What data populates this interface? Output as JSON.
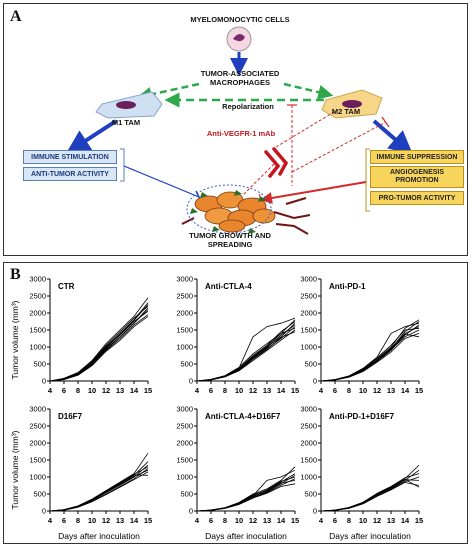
{
  "panel_a": {
    "label": "A",
    "myelo": "MYELOMONOCYTIC CELLS",
    "tam": "TUMOR-ASSOCIATED\nMACROPHAGES",
    "m1": "M1 TAM",
    "m2": "M2 TAM",
    "repol": "Repolarization",
    "antibody": "Anti-VEGFR-1 mAb",
    "m1_effects": [
      "IMMUNE STIMULATION",
      "ANTI-TUMOR ACTIVITY"
    ],
    "m2_effects": [
      "IMMUNE SUPPRESSION",
      "ANGIOGENESIS\nPROMOTION",
      "PRO-TUMOR ACTIVITY"
    ],
    "tumor": "TUMOR GROWTH AND\nSPREADING",
    "colors": {
      "blue_arrow": "#1f3fbf",
      "green_arrow": "#2ea84a",
      "red_arrow": "#d42a2a",
      "tumor": "#e8852d",
      "cell": "#7a2a6a"
    }
  },
  "panel_b": {
    "label": "B",
    "ylabel": "Tumor volume (mm³)",
    "xlabel": "Days after inoculation"
  },
  "chart_data": [
    {
      "type": "line",
      "title": "CTR",
      "x": [
        4,
        6,
        8,
        10,
        12,
        13,
        14,
        15
      ],
      "ylim": [
        0,
        3000
      ],
      "yticks": [
        0,
        500,
        1000,
        1500,
        2000,
        2500,
        3000
      ],
      "xticks": [
        4,
        6,
        8,
        10,
        12,
        13,
        14,
        15
      ],
      "series": [
        {
          "values": [
            0,
            80,
            250,
            600,
            1100,
            1500,
            1900,
            2450
          ]
        },
        {
          "values": [
            0,
            60,
            220,
            550,
            1000,
            1400,
            1800,
            2300
          ]
        },
        {
          "values": [
            0,
            70,
            240,
            580,
            1050,
            1450,
            1850,
            2200
          ]
        },
        {
          "values": [
            0,
            50,
            200,
            500,
            950,
            1300,
            1700,
            2150
          ]
        },
        {
          "values": [
            0,
            60,
            210,
            520,
            980,
            1350,
            1750,
            2050
          ]
        },
        {
          "values": [
            0,
            40,
            180,
            480,
            900,
            1250,
            1650,
            1950
          ]
        },
        {
          "values": [
            0,
            55,
            190,
            490,
            920,
            1300,
            1700,
            2100
          ]
        },
        {
          "values": [
            0,
            45,
            170,
            450,
            870,
            1200,
            1600,
            1900
          ]
        },
        {
          "values": [
            0,
            65,
            230,
            560,
            1020,
            1380,
            1780,
            2250
          ]
        }
      ]
    },
    {
      "type": "line",
      "title": "Anti-CTLA-4",
      "x": [
        4,
        6,
        8,
        10,
        12,
        13,
        14,
        15
      ],
      "ylim": [
        0,
        3000
      ],
      "yticks": [
        0,
        500,
        1000,
        1500,
        2000,
        2500,
        3000
      ],
      "xticks": [
        4,
        6,
        8,
        10,
        12,
        13,
        14,
        15
      ],
      "series": [
        {
          "values": [
            0,
            40,
            150,
            380,
            1300,
            1600,
            1700,
            1850
          ]
        },
        {
          "values": [
            0,
            50,
            160,
            400,
            800,
            1100,
            1400,
            1800
          ]
        },
        {
          "values": [
            0,
            45,
            140,
            350,
            700,
            1000,
            1300,
            1700
          ]
        },
        {
          "values": [
            0,
            35,
            130,
            330,
            650,
            950,
            1250,
            1600
          ]
        },
        {
          "values": [
            0,
            40,
            150,
            370,
            750,
            1050,
            1450,
            1750
          ]
        },
        {
          "values": [
            0,
            30,
            120,
            300,
            600,
            900,
            1200,
            1500
          ]
        },
        {
          "values": [
            0,
            38,
            135,
            320,
            680,
            980,
            1350,
            1650
          ]
        },
        {
          "values": [
            0,
            42,
            145,
            360,
            720,
            1020,
            1400,
            1550
          ]
        },
        {
          "values": [
            0,
            36,
            125,
            310,
            640,
            930,
            1280,
            1450
          ]
        }
      ]
    },
    {
      "type": "line",
      "title": "Anti-PD-1",
      "x": [
        4,
        6,
        8,
        10,
        12,
        13,
        14,
        15
      ],
      "ylim": [
        0,
        3000
      ],
      "yticks": [
        0,
        500,
        1000,
        1500,
        2000,
        2500,
        3000
      ],
      "xticks": [
        4,
        6,
        8,
        10,
        12,
        13,
        14,
        15
      ],
      "series": [
        {
          "values": [
            0,
            40,
            140,
            350,
            650,
            1000,
            1550,
            1800
          ]
        },
        {
          "values": [
            0,
            35,
            130,
            320,
            600,
            950,
            1450,
            1750
          ]
        },
        {
          "values": [
            0,
            45,
            150,
            370,
            700,
            1400,
            1600,
            1700
          ]
        },
        {
          "values": [
            0,
            30,
            120,
            300,
            580,
            900,
            1350,
            1650
          ]
        },
        {
          "values": [
            0,
            38,
            135,
            330,
            620,
            970,
            1400,
            1600
          ]
        },
        {
          "values": [
            0,
            42,
            145,
            360,
            680,
            1050,
            1500,
            1550
          ]
        },
        {
          "values": [
            0,
            28,
            110,
            280,
            550,
            850,
            1250,
            1400
          ]
        },
        {
          "values": [
            0,
            33,
            125,
            310,
            590,
            920,
            1300,
            1500
          ]
        },
        {
          "values": [
            0,
            36,
            128,
            315,
            610,
            940,
            1380,
            1300
          ]
        }
      ]
    },
    {
      "type": "line",
      "title": "D16F7",
      "x": [
        4,
        6,
        8,
        10,
        12,
        13,
        14,
        15
      ],
      "ylim": [
        0,
        3000
      ],
      "yticks": [
        0,
        500,
        1000,
        1500,
        2000,
        2500,
        3000
      ],
      "xticks": [
        4,
        6,
        8,
        10,
        12,
        13,
        14,
        15
      ],
      "series": [
        {
          "values": [
            0,
            40,
            150,
            350,
            600,
            850,
            1100,
            1700
          ]
        },
        {
          "values": [
            0,
            35,
            140,
            330,
            560,
            800,
            1050,
            1450
          ]
        },
        {
          "values": [
            0,
            30,
            130,
            310,
            540,
            760,
            1000,
            1350
          ]
        },
        {
          "values": [
            0,
            38,
            145,
            340,
            580,
            820,
            1080,
            1300
          ]
        },
        {
          "values": [
            0,
            28,
            120,
            290,
            500,
            720,
            950,
            1250
          ]
        },
        {
          "values": [
            0,
            33,
            135,
            320,
            550,
            780,
            1020,
            1200
          ]
        },
        {
          "values": [
            0,
            25,
            110,
            270,
            480,
            700,
            920,
            1150
          ]
        },
        {
          "values": [
            0,
            36,
            138,
            325,
            570,
            810,
            1060,
            1050
          ]
        }
      ]
    },
    {
      "type": "line",
      "title": "Anti-CTLA-4+D16F7",
      "x": [
        4,
        6,
        8,
        10,
        12,
        13,
        14,
        15
      ],
      "ylim": [
        0,
        3000
      ],
      "yticks": [
        0,
        500,
        1000,
        1500,
        2000,
        2500,
        3000
      ],
      "xticks": [
        4,
        6,
        8,
        10,
        12,
        13,
        14,
        15
      ],
      "series": [
        {
          "values": [
            0,
            30,
            100,
            250,
            500,
            650,
            900,
            1300
          ]
        },
        {
          "values": [
            0,
            25,
            90,
            230,
            450,
            900,
            1000,
            1200
          ]
        },
        {
          "values": [
            0,
            28,
            95,
            240,
            480,
            600,
            850,
            1100
          ]
        },
        {
          "values": [
            0,
            22,
            85,
            220,
            420,
            560,
            800,
            1050
          ]
        },
        {
          "values": [
            0,
            26,
            92,
            235,
            460,
            620,
            870,
            1000
          ]
        },
        {
          "values": [
            0,
            20,
            80,
            200,
            400,
            540,
            760,
            950
          ]
        },
        {
          "values": [
            0,
            24,
            88,
            225,
            440,
            580,
            820,
            900
          ]
        },
        {
          "values": [
            0,
            18,
            75,
            190,
            380,
            520,
            720,
            800
          ]
        }
      ]
    },
    {
      "type": "line",
      "title": "Anti-PD-1+D16F7",
      "x": [
        4,
        6,
        8,
        10,
        12,
        13,
        14,
        15
      ],
      "ylim": [
        0,
        3000
      ],
      "yticks": [
        0,
        500,
        1000,
        1500,
        2000,
        2500,
        3000
      ],
      "xticks": [
        4,
        6,
        8,
        10,
        12,
        13,
        14,
        15
      ],
      "series": [
        {
          "values": [
            0,
            25,
            100,
            250,
            500,
            700,
            950,
            1350
          ]
        },
        {
          "values": [
            0,
            22,
            90,
            230,
            470,
            660,
            900,
            1200
          ]
        },
        {
          "values": [
            0,
            28,
            105,
            260,
            520,
            720,
            980,
            1100
          ]
        },
        {
          "values": [
            0,
            20,
            85,
            220,
            450,
            640,
            860,
            1000
          ]
        },
        {
          "values": [
            0,
            24,
            95,
            240,
            480,
            680,
            920,
            900
          ]
        },
        {
          "values": [
            0,
            18,
            80,
            210,
            430,
            620,
            840,
            750
          ]
        },
        {
          "values": [
            0,
            26,
            98,
            245,
            490,
            690,
            930,
            700
          ]
        }
      ]
    }
  ]
}
